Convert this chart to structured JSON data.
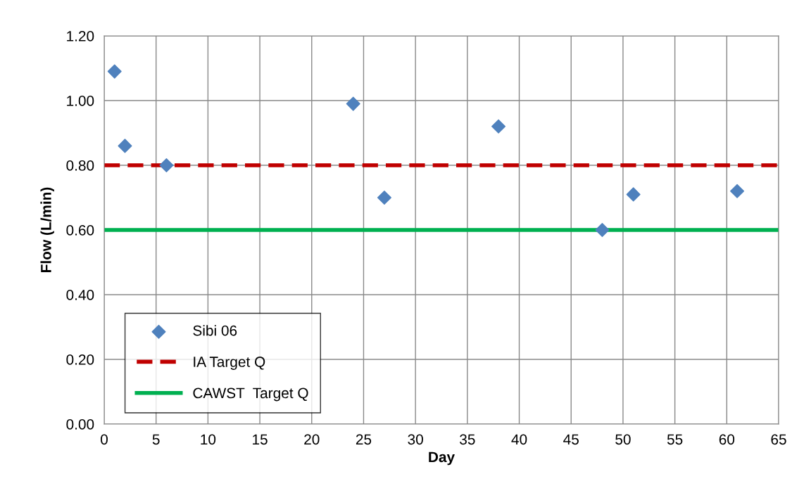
{
  "chart_data": {
    "type": "scatter",
    "xlabel": "Day",
    "ylabel": "Flow (L/min)",
    "xlim": [
      0,
      65
    ],
    "xticks": [
      0,
      5,
      10,
      15,
      20,
      25,
      30,
      35,
      40,
      45,
      50,
      55,
      60,
      65
    ],
    "ylim": [
      0,
      1.2
    ],
    "yticks": [
      {
        "value": 0,
        "label": "0.00"
      },
      {
        "value": 0.2,
        "label": "0.20"
      },
      {
        "value": 0.4,
        "label": "0.40"
      },
      {
        "value": 0.6,
        "label": "0.60"
      },
      {
        "value": 0.8,
        "label": "0.80"
      },
      {
        "value": 1.0,
        "label": "1.00"
      },
      {
        "value": 1.2,
        "label": "1.20"
      }
    ],
    "grid": true,
    "legend": "bottom left",
    "series": [
      {
        "name": "Sibi 06",
        "marker": "diamond",
        "color": "#4f81bd",
        "x": [
          1,
          2,
          6,
          24,
          27,
          38,
          48,
          51,
          61
        ],
        "values": [
          1.09,
          0.86,
          0.8,
          0.99,
          0.7,
          0.92,
          0.6,
          0.71,
          0.72
        ]
      },
      {
        "name": "IA Target Q",
        "type": "line",
        "line_style": "dashed",
        "color": "#c00000",
        "x": [
          0,
          65
        ],
        "values": [
          0.8,
          0.8
        ]
      },
      {
        "name": "CAWST  Target Q",
        "type": "line",
        "line_style": "solid",
        "color": "#00b050",
        "x": [
          0,
          65
        ],
        "values": [
          0.6,
          0.6
        ]
      }
    ]
  }
}
